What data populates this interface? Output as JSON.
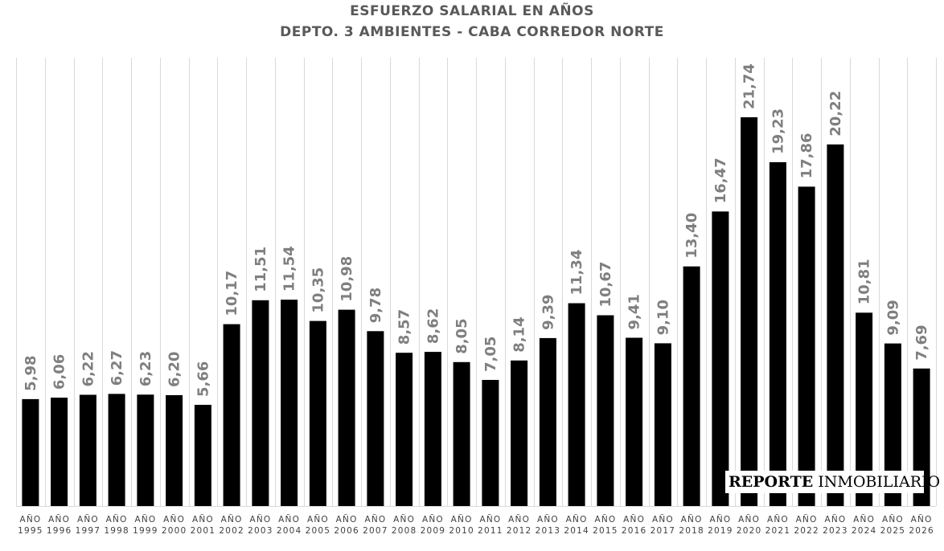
{
  "chart_data": {
    "type": "bar",
    "title": "ESFUERZO SALARIAL EN AÑOS",
    "subtitle": "DEPTO. 3 AMBIENTES - CABA CORREDOR NORTE",
    "categories": [
      "AÑO|1995",
      "AÑO|1996",
      "AÑO|1997",
      "AÑO|1998",
      "AÑO|1999",
      "AÑO|2000",
      "AÑO|2001",
      "AÑO|2002",
      "AÑO|2003",
      "AÑO|2004",
      "AÑO|2005",
      "AÑO|2006",
      "AÑO|2007",
      "AÑO|2008",
      "AÑO|2009",
      "AÑO|2010",
      "AÑO|2011",
      "AÑO|2012",
      "AÑO|2013",
      "AÑO|2014",
      "AÑO|2015",
      "AÑO|2016",
      "AÑO|2017",
      "AÑO|2018",
      "AÑO|2019",
      "AÑO|2020",
      "AÑO|2021",
      "AÑO|2022",
      "AÑO|2023",
      "AÑO|2024",
      "AÑO|2025",
      "AÑO|2026"
    ],
    "values": [
      5.98,
      6.06,
      6.22,
      6.27,
      6.23,
      6.2,
      5.66,
      10.17,
      11.51,
      11.54,
      10.35,
      10.98,
      9.78,
      8.57,
      8.62,
      8.05,
      7.05,
      8.14,
      9.39,
      11.34,
      10.67,
      9.41,
      9.1,
      13.4,
      16.47,
      21.74,
      19.23,
      17.86,
      20.22,
      10.81,
      9.09,
      7.69
    ],
    "labels": [
      "5,98",
      "6,06",
      "6,22",
      "6,27",
      "6,23",
      "6,20",
      "5,66",
      "10,17",
      "11,51",
      "11,54",
      "10,35",
      "10,98",
      "9,78",
      "8,57",
      "8,62",
      "8,05",
      "7,05",
      "8,14",
      "9,39",
      "11,34",
      "10,67",
      "9,41",
      "9,10",
      "13,40",
      "16,47",
      "21,74",
      "19,23",
      "17,86",
      "20,22",
      "10,81",
      "9,09",
      "7,69"
    ],
    "ylim": [
      0,
      25
    ],
    "grid": "vertical",
    "bar_color": "#000000",
    "label_color": "#7f7f7f"
  },
  "watermark": {
    "bold": "REPORTE",
    "regular": "INMOBILIARIO"
  }
}
